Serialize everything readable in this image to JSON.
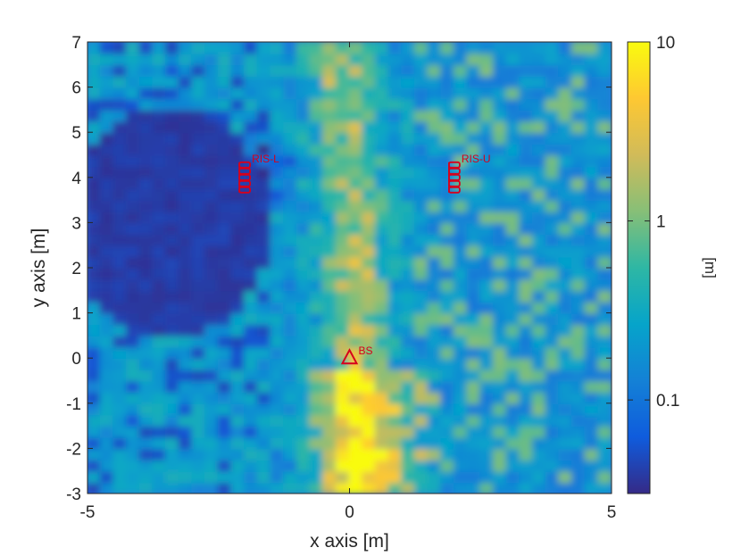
{
  "chart_data": {
    "type": "heatmap",
    "title": "",
    "xlabel": "x axis [m]",
    "ylabel": "y axis [m]",
    "xlim": [
      -5,
      5
    ],
    "ylim": [
      -3,
      7
    ],
    "xticks": [
      "-5",
      "0",
      "5"
    ],
    "yticks": [
      "-3",
      "-2",
      "-1",
      "0",
      "1",
      "2",
      "3",
      "4",
      "5",
      "6",
      "7"
    ],
    "colorbar": {
      "label": "[m]",
      "scale": "log",
      "range": [
        0.03,
        10
      ],
      "ticks": [
        "0.1",
        "1",
        "10"
      ],
      "tick_values": [
        0.1,
        1,
        10
      ],
      "colormap": "parula"
    },
    "markers": [
      {
        "label": "BS",
        "shape": "triangle",
        "x": 0,
        "y": 0,
        "color": "#d6001c"
      },
      {
        "label": "RIS-L",
        "shape": "ris-array",
        "x": -2,
        "y": 4,
        "color": "#d6001c"
      },
      {
        "label": "RIS-U",
        "shape": "ris-array",
        "x": 2,
        "y": 4,
        "color": "#d6001c"
      }
    ],
    "grid": false,
    "legend": "none"
  }
}
